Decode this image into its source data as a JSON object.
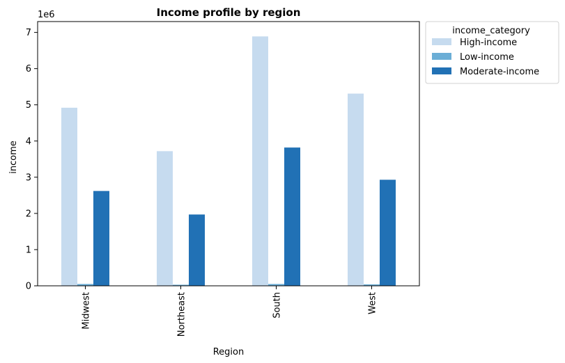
{
  "chart_data": {
    "type": "bar",
    "title": "Income profile by region",
    "xlabel": "Region",
    "ylabel": "income",
    "y_multiplier_label": "1e6",
    "categories": [
      "Midwest",
      "Northeast",
      "South",
      "West"
    ],
    "yticks": [
      0,
      1,
      2,
      3,
      4,
      5,
      6,
      7
    ],
    "ylim": [
      0,
      7.3
    ],
    "grid": false,
    "legend": {
      "title": "income_category",
      "placement": "outside-top-right"
    },
    "series": [
      {
        "name": "High-income",
        "color": "#c6dbef",
        "values": [
          4.92,
          3.72,
          6.89,
          5.31
        ]
      },
      {
        "name": "Low-income",
        "color": "#6baed6",
        "values": [
          0.05,
          0.03,
          0.05,
          0.04
        ]
      },
      {
        "name": "Moderate-income",
        "color": "#2171b5",
        "values": [
          2.62,
          1.97,
          3.82,
          2.93
        ]
      }
    ]
  }
}
